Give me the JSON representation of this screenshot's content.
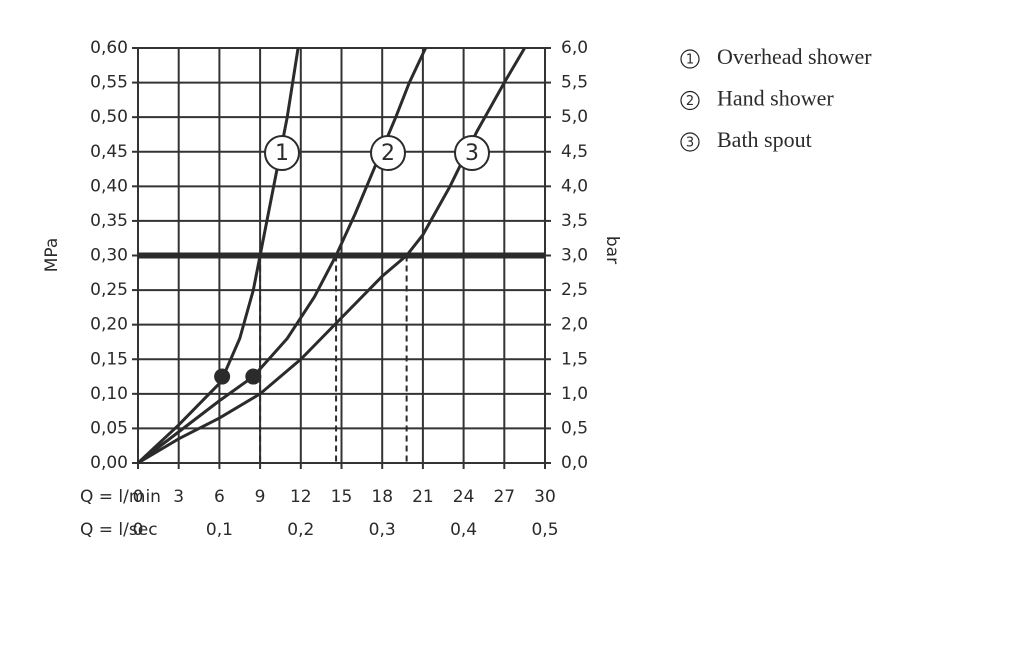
{
  "chart_data": {
    "type": "line",
    "xlabel": "Q = l/min",
    "x2label": "Q = l/sec",
    "ylabel": "MPa",
    "y2label": "bar",
    "xlim": [
      0,
      30
    ],
    "xticks": [
      0,
      3,
      6,
      9,
      12,
      15,
      18,
      21,
      24,
      27,
      30
    ],
    "x2lim": [
      0,
      0.5
    ],
    "x2ticks": [
      0,
      {
        "value": 0.1,
        "label": "0,1"
      },
      {
        "value": 0.2,
        "label": "0,2"
      },
      {
        "value": 0.3,
        "label": "0,3"
      },
      {
        "value": 0.4,
        "label": "0,4"
      },
      {
        "value": 0.5,
        "label": "0,5"
      }
    ],
    "ylim": [
      0,
      0.6
    ],
    "yticks": [
      {
        "value": 0,
        "label": "0,00"
      },
      {
        "value": 0.05,
        "label": "0,05"
      },
      {
        "value": 0.1,
        "label": "0,10"
      },
      {
        "value": 0.15,
        "label": "0,15"
      },
      {
        "value": 0.2,
        "label": "0,20"
      },
      {
        "value": 0.25,
        "label": "0,25"
      },
      {
        "value": 0.3,
        "label": "0,30"
      },
      {
        "value": 0.35,
        "label": "0,35"
      },
      {
        "value": 0.4,
        "label": "0,40"
      },
      {
        "value": 0.45,
        "label": "0,45"
      },
      {
        "value": 0.5,
        "label": "0,50"
      },
      {
        "value": 0.55,
        "label": "0,55"
      },
      {
        "value": 0.6,
        "label": "0,60"
      }
    ],
    "y2lim": [
      0,
      6
    ],
    "y2ticks": [
      {
        "value": 0,
        "label": "0,0"
      },
      {
        "value": 0.5,
        "label": "0,5"
      },
      {
        "value": 1,
        "label": "1,0"
      },
      {
        "value": 1.5,
        "label": "1,5"
      },
      {
        "value": 2,
        "label": "2,0"
      },
      {
        "value": 2.5,
        "label": "2,5"
      },
      {
        "value": 3,
        "label": "3,0"
      },
      {
        "value": 3.5,
        "label": "3,5"
      },
      {
        "value": 4,
        "label": "4,0"
      },
      {
        "value": 4.5,
        "label": "4,5"
      },
      {
        "value": 5,
        "label": "5,0"
      },
      {
        "value": 5.5,
        "label": "5,5"
      },
      {
        "value": 6,
        "label": "6,0"
      }
    ],
    "grid": true,
    "reference_line": 0.3,
    "dashed_x": [
      9,
      14.6,
      19.8
    ],
    "markers": {
      "x": [
        6.2,
        8.5
      ],
      "y": [
        0.125,
        0.125
      ]
    },
    "series": [
      {
        "name": "Overhead shower",
        "label": "1",
        "color": "#2b2b2b",
        "x": [
          0,
          3,
          6,
          6.5,
          7.5,
          8.5,
          9,
          10,
          11,
          11.8
        ],
        "values": [
          0,
          0.055,
          0.115,
          0.135,
          0.18,
          0.25,
          0.3,
          0.4,
          0.5,
          0.6
        ]
      },
      {
        "name": "Hand shower",
        "label": "2",
        "color": "#2b2b2b",
        "x": [
          0,
          3,
          6,
          8.5,
          11,
          13,
          14.6,
          16,
          17.5,
          19,
          20,
          21.2
        ],
        "values": [
          0,
          0.045,
          0.09,
          0.125,
          0.18,
          0.24,
          0.3,
          0.36,
          0.43,
          0.5,
          0.55,
          0.6
        ]
      },
      {
        "name": "Bath spout",
        "label": "3",
        "color": "#2b2b2b",
        "x": [
          0,
          3,
          6,
          9,
          12,
          15,
          18,
          19.8,
          21,
          23,
          25,
          27,
          28.5
        ],
        "values": [
          0,
          0.035,
          0.065,
          0.1,
          0.15,
          0.21,
          0.27,
          0.3,
          0.33,
          0.4,
          0.48,
          0.55,
          0.6
        ]
      }
    ]
  }
}
